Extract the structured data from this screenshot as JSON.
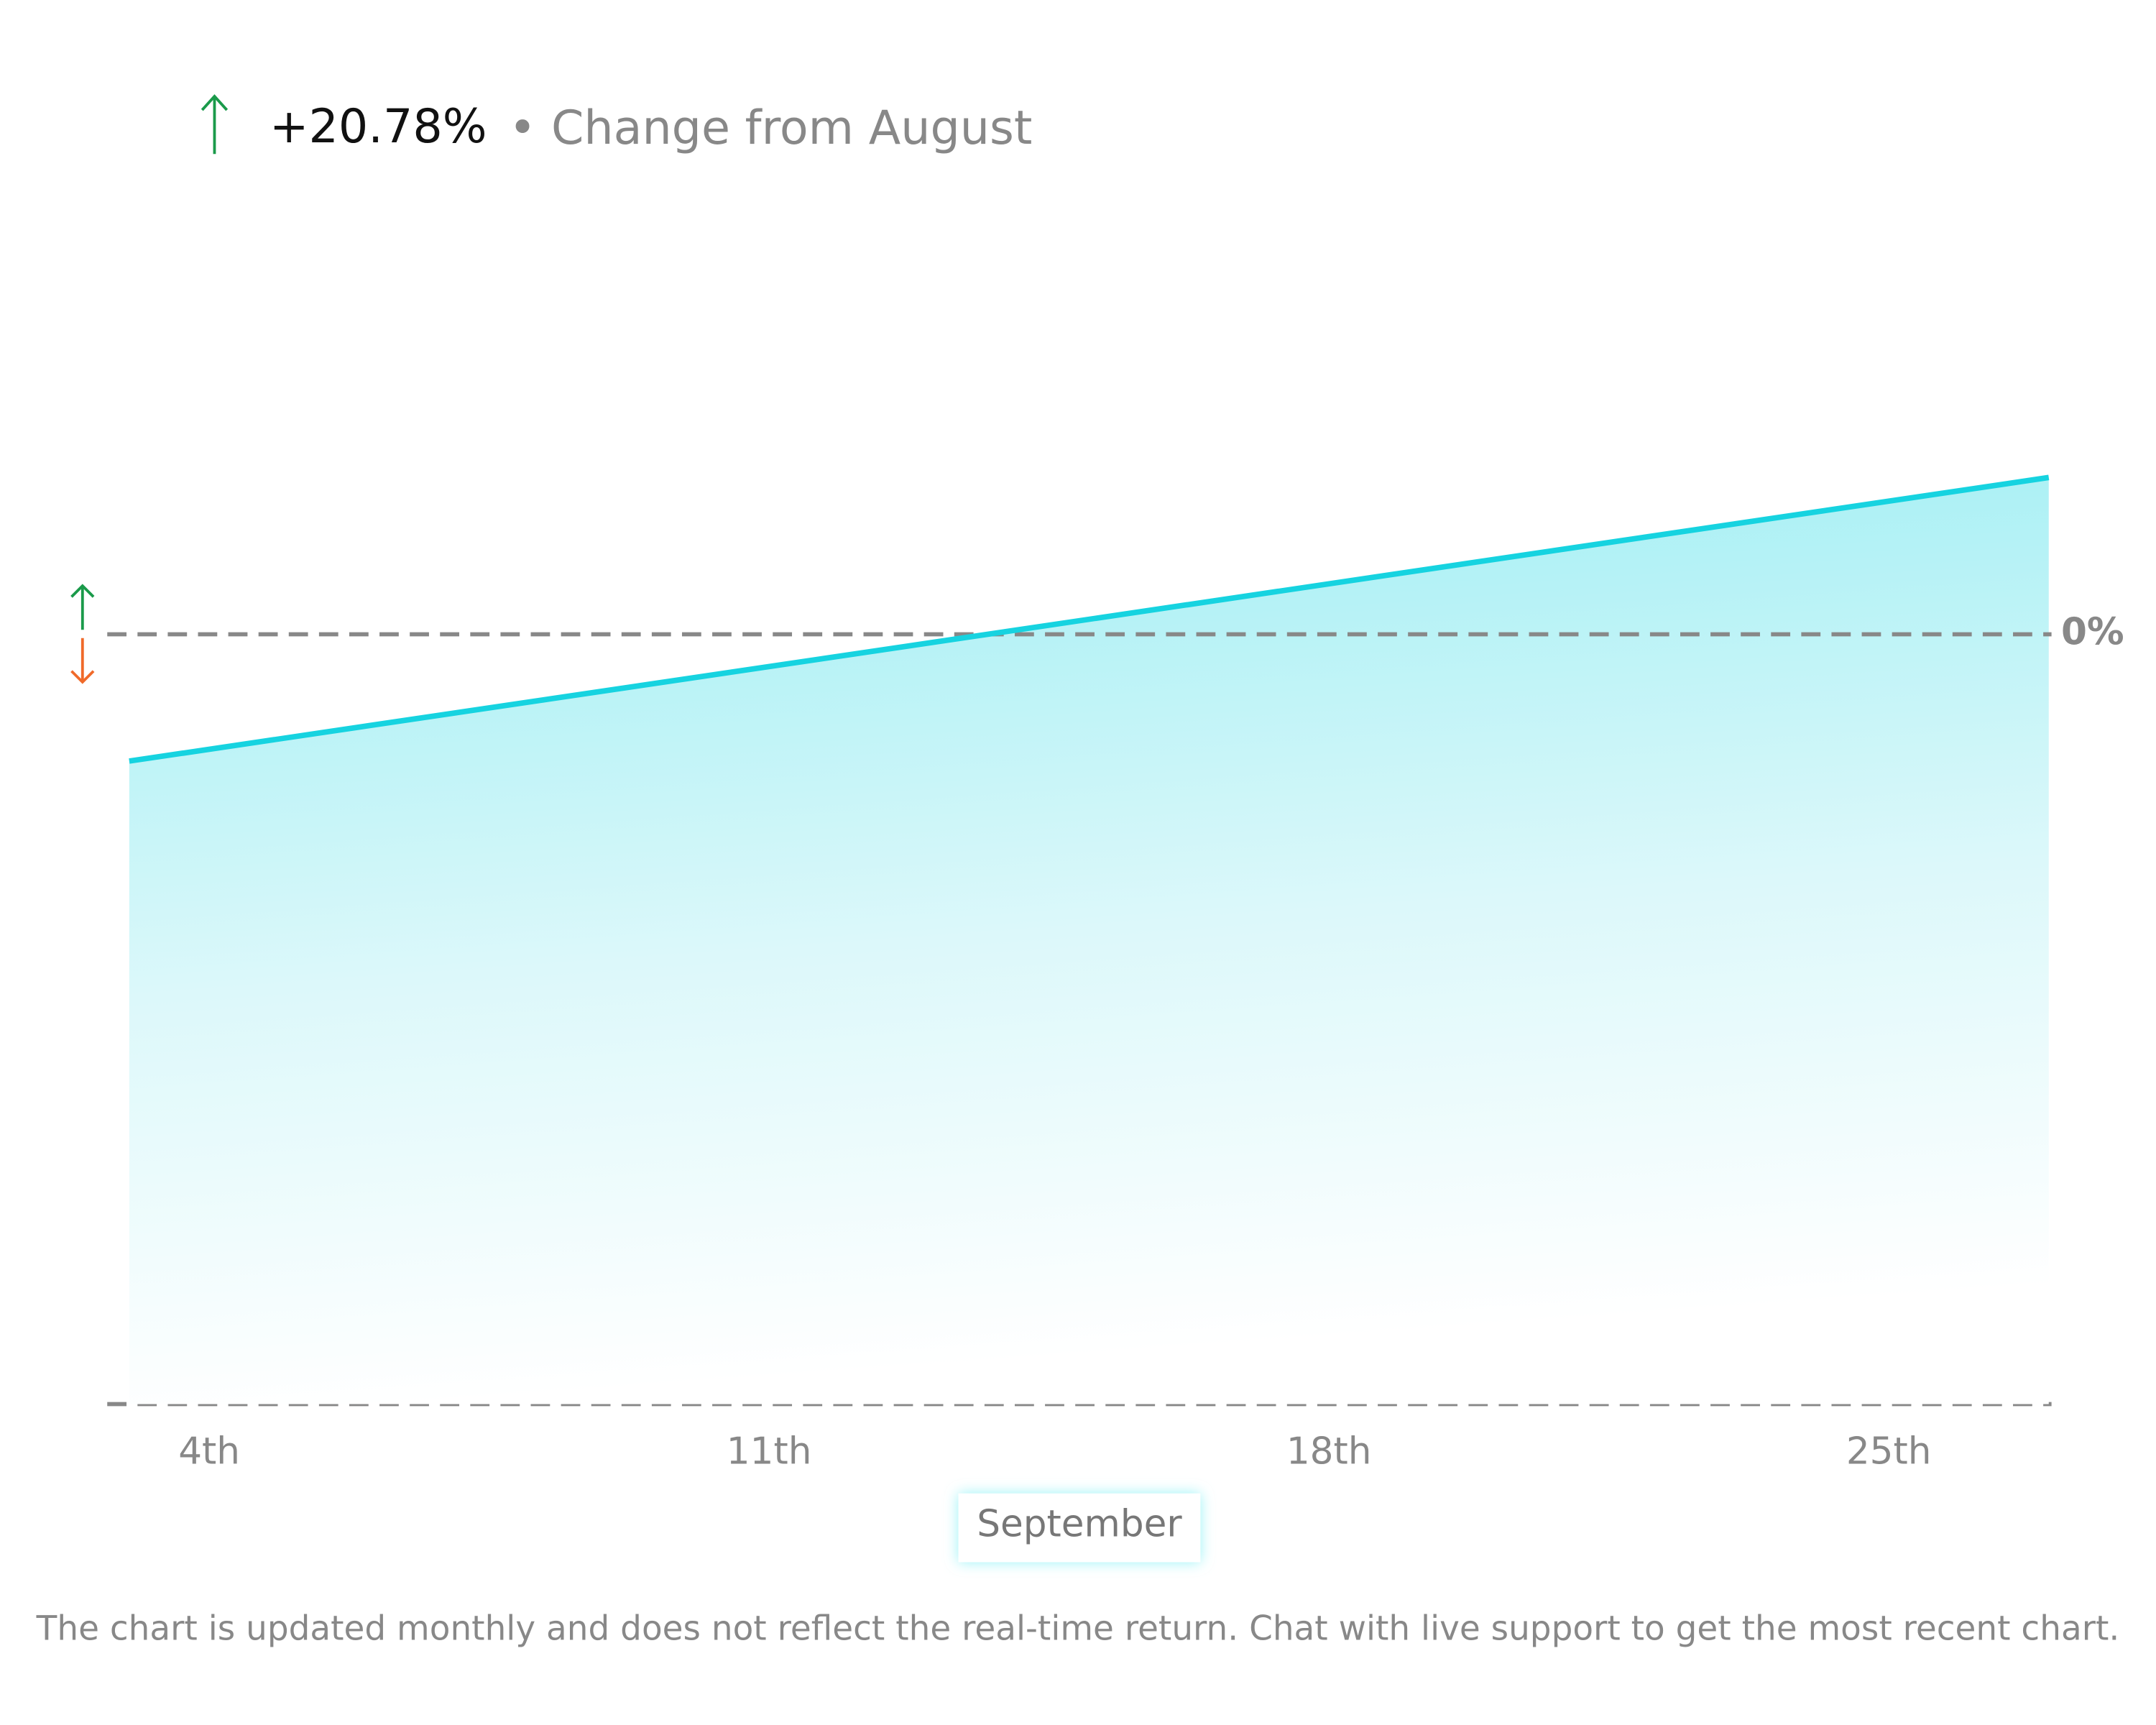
{
  "header": {
    "change": "+20.78%",
    "label": "• Change from August"
  },
  "chart_data": {
    "type": "area",
    "x": [
      3,
      27
    ],
    "values": [
      -16.8,
      20.78
    ],
    "color": "#16d3e0",
    "xlim": [
      3,
      27
    ],
    "xticks": [
      {
        "value": 4,
        "label": "4th"
      },
      {
        "value": 11,
        "label": "11th"
      },
      {
        "value": 18,
        "label": "18th"
      },
      {
        "value": 25,
        "label": "25th"
      }
    ],
    "ylim": [
      -102,
      60
    ],
    "yticks": [
      {
        "value": 0,
        "label": "0%"
      }
    ],
    "xlabel": "September",
    "grid": true
  },
  "footnote": "The chart is updated monthly and does not reflect the real-time return. Chat with live support to get the most recent chart."
}
